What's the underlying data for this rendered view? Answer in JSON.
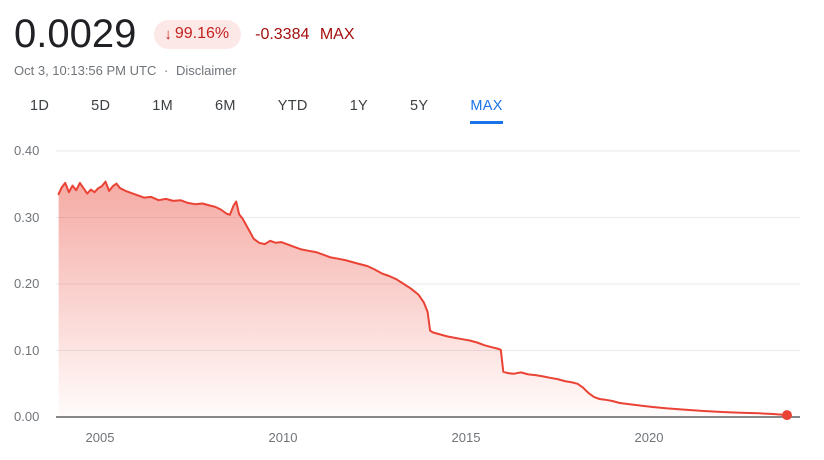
{
  "header": {
    "price": "0.0029",
    "change_arrow": "↓",
    "change_pct": "99.16%",
    "change_abs": "-0.3384",
    "change_period": "MAX",
    "timestamp": "Oct 3, 10:13:56 PM UTC",
    "separator": "·",
    "disclaimer": "Disclaimer"
  },
  "tabs": [
    {
      "label": "1D",
      "active": false
    },
    {
      "label": "5D",
      "active": false
    },
    {
      "label": "1M",
      "active": false
    },
    {
      "label": "6M",
      "active": false
    },
    {
      "label": "YTD",
      "active": false
    },
    {
      "label": "1Y",
      "active": false
    },
    {
      "label": "5Y",
      "active": false
    },
    {
      "label": "MAX",
      "active": true
    }
  ],
  "colors": {
    "line": "#ea4335",
    "badge_bg": "#fce8e6",
    "badge_text": "#c5221f",
    "change_text": "#a50e0e",
    "tab_active": "#1a73e8",
    "grid_line": "#e8eaed",
    "axis_line": "#3c4043",
    "tick_text": "#70757a"
  },
  "chart_data": {
    "type": "area",
    "title": "",
    "xlabel": "",
    "ylabel": "",
    "grid": true,
    "legend": false,
    "end_dot": true,
    "xlim": [
      2003.85,
      2023.85
    ],
    "ylim": [
      0,
      0.4
    ],
    "yticks": [
      0,
      0.1,
      0.2,
      0.3,
      0.4
    ],
    "ytick_labels": [
      "0.00",
      "0.10",
      "0.20",
      "0.30",
      "0.40"
    ],
    "xticks": [
      2005,
      2010,
      2015,
      2020
    ],
    "xtick_labels": [
      "2005",
      "2010",
      "2015",
      "2020"
    ],
    "x": [
      2003.87,
      2003.95,
      2004.05,
      2004.15,
      2004.25,
      2004.35,
      2004.45,
      2004.55,
      2004.65,
      2004.75,
      2004.85,
      2004.95,
      2005.05,
      2005.15,
      2005.25,
      2005.35,
      2005.45,
      2005.55,
      2005.7,
      2005.85,
      2006.0,
      2006.2,
      2006.4,
      2006.6,
      2006.8,
      2007.0,
      2007.2,
      2007.4,
      2007.6,
      2007.8,
      2008.0,
      2008.15,
      2008.3,
      2008.45,
      2008.55,
      2008.65,
      2008.72,
      2008.8,
      2008.9,
      2009.0,
      2009.1,
      2009.2,
      2009.35,
      2009.5,
      2009.65,
      2009.8,
      2009.95,
      2010.1,
      2010.3,
      2010.5,
      2010.7,
      2010.9,
      2011.1,
      2011.3,
      2011.5,
      2011.7,
      2011.9,
      2012.1,
      2012.3,
      2012.5,
      2012.7,
      2012.9,
      2013.1,
      2013.3,
      2013.5,
      2013.7,
      2013.85,
      2013.95,
      2014.02,
      2014.1,
      2014.3,
      2014.5,
      2014.7,
      2014.9,
      2015.1,
      2015.3,
      2015.5,
      2015.7,
      2015.85,
      2015.95,
      2016.02,
      2016.15,
      2016.3,
      2016.5,
      2016.7,
      2016.9,
      2017.1,
      2017.3,
      2017.5,
      2017.7,
      2017.9,
      2018.05,
      2018.2,
      2018.35,
      2018.5,
      2018.65,
      2018.8,
      2019.0,
      2019.2,
      2019.5,
      2019.8,
      2020.1,
      2020.5,
      2021.0,
      2021.5,
      2022.0,
      2022.5,
      2023.0,
      2023.4,
      2023.77
    ],
    "values": [
      0.335,
      0.345,
      0.352,
      0.338,
      0.348,
      0.341,
      0.352,
      0.344,
      0.336,
      0.342,
      0.338,
      0.344,
      0.347,
      0.354,
      0.34,
      0.347,
      0.351,
      0.344,
      0.34,
      0.337,
      0.334,
      0.33,
      0.331,
      0.326,
      0.328,
      0.325,
      0.326,
      0.322,
      0.32,
      0.321,
      0.318,
      0.316,
      0.312,
      0.306,
      0.304,
      0.318,
      0.324,
      0.305,
      0.298,
      0.288,
      0.278,
      0.268,
      0.262,
      0.26,
      0.265,
      0.262,
      0.263,
      0.26,
      0.256,
      0.252,
      0.25,
      0.248,
      0.244,
      0.24,
      0.238,
      0.236,
      0.233,
      0.23,
      0.227,
      0.222,
      0.216,
      0.212,
      0.207,
      0.2,
      0.193,
      0.184,
      0.172,
      0.158,
      0.13,
      0.127,
      0.124,
      0.121,
      0.119,
      0.117,
      0.115,
      0.112,
      0.108,
      0.105,
      0.103,
      0.101,
      0.068,
      0.066,
      0.065,
      0.067,
      0.064,
      0.063,
      0.061,
      0.059,
      0.057,
      0.054,
      0.052,
      0.05,
      0.044,
      0.036,
      0.03,
      0.027,
      0.026,
      0.024,
      0.021,
      0.019,
      0.017,
      0.015,
      0.013,
      0.011,
      0.009,
      0.0075,
      0.0065,
      0.0055,
      0.0045,
      0.0029
    ]
  }
}
